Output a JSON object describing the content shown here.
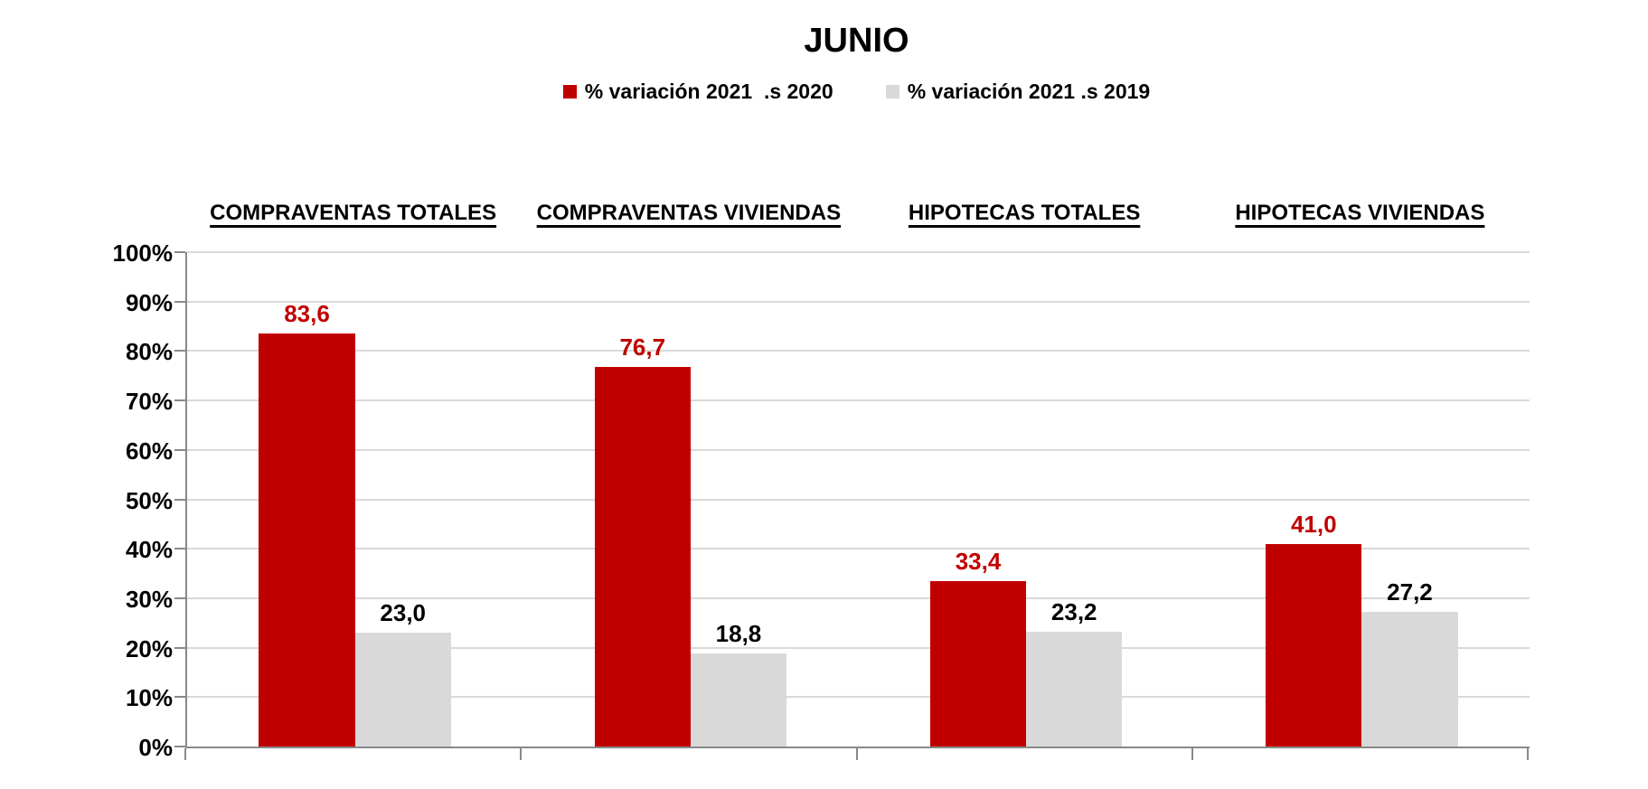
{
  "title": "JUNIO",
  "legend": {
    "items": [
      {
        "label": "% variación 2021  .s 2020",
        "color": "#C00000"
      },
      {
        "label": "% variación 2021 .s 2019",
        "color": "#D9D9D9"
      }
    ],
    "position": "top-center"
  },
  "chart_data": {
    "type": "bar",
    "title": "JUNIO",
    "categories": [
      "COMPRAVENTAS TOTALES",
      "COMPRAVENTAS VIVIENDAS",
      "HIPOTECAS TOTALES",
      "HIPOTECAS VIVIENDAS"
    ],
    "series": [
      {
        "name": "% variación 2021  .s 2020",
        "color": "#C00000",
        "label_color": "#C00000",
        "values": [
          83.6,
          76.7,
          33.4,
          41.0
        ]
      },
      {
        "name": "% variación 2021 .s 2019",
        "color": "#D9D9D9",
        "label_color": "#000000",
        "values": [
          23.0,
          18.8,
          23.2,
          27.2
        ]
      }
    ],
    "value_labels": [
      [
        "83,6",
        "76,7",
        "33,4",
        "41,0"
      ],
      [
        "23,0",
        "18,8",
        "23,2",
        "27,2"
      ]
    ],
    "decimal_separator": ",",
    "xlabel": "",
    "ylabel": "",
    "ylim": [
      0,
      100
    ],
    "y_step": 10,
    "y_tick_labels": [
      "100%",
      "90%",
      "80%",
      "70%",
      "60%",
      "50%",
      "40%",
      "30%",
      "20%",
      "10%",
      "0%"
    ],
    "grid": true,
    "legend_position": "top"
  },
  "colors": {
    "series_red": "#C00000",
    "series_gray": "#D9D9D9",
    "axis": "#898989",
    "gridline": "#D9D9D9",
    "text": "#000000",
    "background": "#FFFFFF"
  }
}
